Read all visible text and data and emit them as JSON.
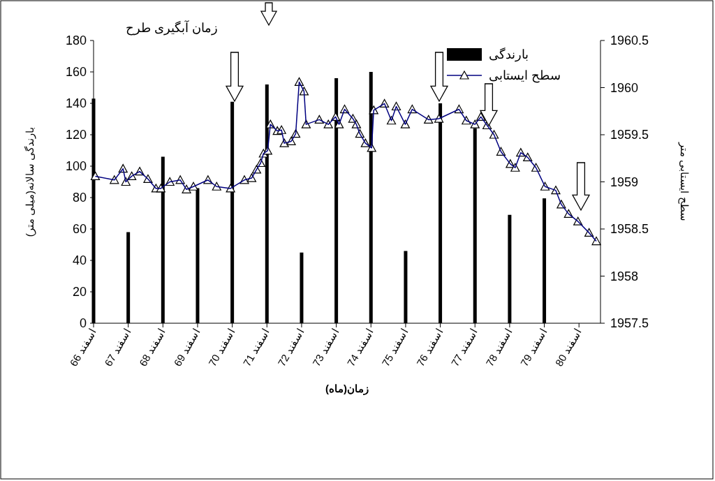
{
  "chart_data": {
    "type": "bar",
    "xlabel": "زمان(ماه)",
    "ylabel": "بارندگی سالانه(میلی متر)",
    "y2label": "سطح ایستابی متر",
    "annotations": [
      "زمان آبگیری طرح"
    ],
    "xlim": [
      66,
      80.62
    ],
    "xticks": [
      {
        "value": 66,
        "label": "66 اسفند"
      },
      {
        "value": 67,
        "label": "67 اسفند"
      },
      {
        "value": 68,
        "label": "68 اسفند"
      },
      {
        "value": 69,
        "label": "69 اسفند"
      },
      {
        "value": 70,
        "label": "70 اسفند"
      },
      {
        "value": 71,
        "label": "71 اسفند"
      },
      {
        "value": 72,
        "label": "72 اسفند"
      },
      {
        "value": 73,
        "label": "73 اسفند"
      },
      {
        "value": 74,
        "label": "74 اسفند"
      },
      {
        "value": 75,
        "label": "75 اسفند"
      },
      {
        "value": 76,
        "label": "76 اسفند"
      },
      {
        "value": 77,
        "label": "77 اسفند"
      },
      {
        "value": 78,
        "label": "78 اسفند"
      },
      {
        "value": 79,
        "label": "79 اسفند"
      },
      {
        "value": 80,
        "label": "80 اسفند"
      }
    ],
    "ylim": [
      0,
      180
    ],
    "yticks": [
      0,
      20,
      40,
      60,
      80,
      100,
      120,
      140,
      160,
      180
    ],
    "y2lim": [
      1957.5,
      1960.5
    ],
    "y2ticks": [
      1957.5,
      1958,
      1958.5,
      1959,
      1959.5,
      1960,
      1960.5
    ],
    "legend": "top right",
    "grid": false,
    "series": [
      {
        "name": "بارندگی",
        "color": "#000000",
        "x": [
          66,
          67,
          68,
          69,
          70,
          71,
          72,
          73,
          74,
          75,
          76,
          77,
          78,
          79
        ],
        "values": [
          143,
          58,
          106,
          86,
          141,
          152,
          45,
          156,
          160,
          46,
          140,
          124,
          69,
          79.5
        ]
      },
      {
        "name": "سطح ایستابی",
        "type": "line",
        "axis": "y2",
        "color": "#000080",
        "marker": "triangle",
        "line_style": "solid",
        "x": [
          66.05,
          66.6,
          66.85,
          66.93,
          67.1,
          67.33,
          67.57,
          67.8,
          67.94,
          68.2,
          68.5,
          68.68,
          68.88,
          69.3,
          69.55,
          69.95,
          70.35,
          70.56,
          70.7,
          70.82,
          70.9,
          71.02,
          71.1,
          71.3,
          71.42,
          71.5,
          71.7,
          71.83,
          71.93,
          72.07,
          72.13,
          72.51,
          72.77,
          72.98,
          73.08,
          73.24,
          73.48,
          73.58,
          73.68,
          73.84,
          74.02,
          74.08,
          74.39,
          74.59,
          74.73,
          74.99,
          75.19,
          75.66,
          75.96,
          76.54,
          76.75,
          77.0,
          77.17,
          77.35,
          77.55,
          77.75,
          78.02,
          78.16,
          78.32,
          78.52,
          78.76,
          79.02,
          79.33,
          79.49,
          79.7,
          79.97,
          80.29,
          80.5
        ],
        "values": [
          1959.06,
          1959.02,
          1959.14,
          1959.0,
          1959.06,
          1959.11,
          1959.03,
          1958.93,
          1958.93,
          1959.0,
          1959.02,
          1958.92,
          1958.95,
          1959.02,
          1958.95,
          1958.93,
          1959.02,
          1959.04,
          1959.13,
          1959.2,
          1959.3,
          1959.33,
          1959.61,
          1959.54,
          1959.55,
          1959.41,
          1959.43,
          1959.51,
          1960.06,
          1959.96,
          1959.61,
          1959.66,
          1959.61,
          1959.69,
          1959.61,
          1959.77,
          1959.67,
          1959.61,
          1959.51,
          1959.41,
          1959.36,
          1959.76,
          1959.83,
          1959.65,
          1959.8,
          1959.61,
          1959.77,
          1959.66,
          1959.67,
          1959.77,
          1959.65,
          1959.61,
          1959.69,
          1959.6,
          1959.5,
          1959.32,
          1959.19,
          1959.15,
          1959.31,
          1959.26,
          1959.15,
          1958.95,
          1958.91,
          1958.76,
          1958.66,
          1958.58,
          1958.46,
          1958.37
        ]
      }
    ]
  }
}
